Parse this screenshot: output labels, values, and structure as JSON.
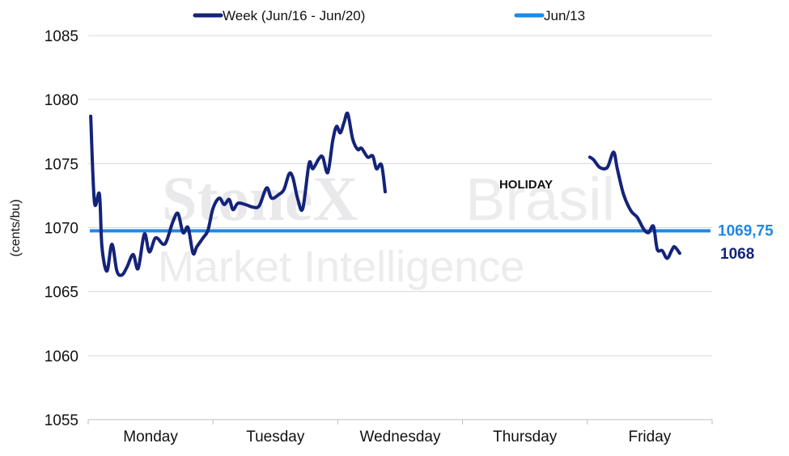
{
  "colors": {
    "week": "#14237a",
    "ref": "#1e88e5",
    "grid": "#d9d9d9"
  },
  "watermark": {
    "brand": "StoneX",
    "brand2": "Brasil",
    "sub": "Market Intelligence"
  },
  "chart_data": {
    "type": "line",
    "ylabel": "(cents/bu)",
    "ylim": [
      1055,
      1085
    ],
    "yticks": [
      1055,
      1060,
      1065,
      1070,
      1075,
      1080,
      1085
    ],
    "categories": [
      "Monday",
      "Tuesday",
      "Wednesday",
      "Thursday",
      "Friday"
    ],
    "grid": true,
    "legend_position": "top",
    "annotation": "HOLIDAY",
    "series": [
      {
        "name": "Week (Jun/16 - Jun/20)",
        "end_label": "1068",
        "segments": [
          [
            [
              0.02,
              1078.7
            ],
            [
              0.05,
              1072.0
            ],
            [
              0.09,
              1072.6
            ],
            [
              0.11,
              1068.5
            ],
            [
              0.15,
              1066.6
            ],
            [
              0.19,
              1068.7
            ],
            [
              0.23,
              1066.6
            ],
            [
              0.27,
              1066.3
            ],
            [
              0.31,
              1066.9
            ],
            [
              0.36,
              1067.9
            ],
            [
              0.4,
              1066.8
            ],
            [
              0.45,
              1069.5
            ],
            [
              0.49,
              1068.1
            ],
            [
              0.54,
              1069.2
            ],
            [
              0.6,
              1068.7
            ],
            [
              0.63,
              1069.0
            ],
            [
              0.68,
              1070.5
            ],
            [
              0.72,
              1071.1
            ],
            [
              0.76,
              1069.6
            ],
            [
              0.8,
              1070.0
            ],
            [
              0.84,
              1068.0
            ],
            [
              0.87,
              1068.5
            ],
            [
              0.92,
              1069.2
            ],
            [
              0.96,
              1069.8
            ],
            [
              1.0,
              1071.5
            ],
            [
              1.05,
              1072.3
            ],
            [
              1.09,
              1071.8
            ],
            [
              1.13,
              1072.2
            ],
            [
              1.16,
              1071.4
            ],
            [
              1.2,
              1071.9
            ],
            [
              1.26,
              1071.8
            ],
            [
              1.32,
              1071.6
            ],
            [
              1.37,
              1071.7
            ],
            [
              1.43,
              1073.1
            ],
            [
              1.47,
              1072.3
            ],
            [
              1.53,
              1072.6
            ],
            [
              1.57,
              1073.0
            ],
            [
              1.61,
              1074.2
            ],
            [
              1.64,
              1073.9
            ],
            [
              1.68,
              1072.2
            ],
            [
              1.72,
              1071.5
            ],
            [
              1.77,
              1075.0
            ],
            [
              1.8,
              1074.6
            ],
            [
              1.85,
              1075.4
            ],
            [
              1.88,
              1075.5
            ],
            [
              1.92,
              1074.3
            ],
            [
              1.96,
              1076.8
            ],
            [
              1.99,
              1077.9
            ],
            [
              2.02,
              1077.4
            ],
            [
              2.05,
              1078.2
            ],
            [
              2.08,
              1078.9
            ],
            [
              2.12,
              1076.9
            ],
            [
              2.16,
              1076.1
            ],
            [
              2.19,
              1076.2
            ],
            [
              2.24,
              1075.5
            ],
            [
              2.28,
              1075.6
            ],
            [
              2.31,
              1074.6
            ],
            [
              2.35,
              1074.9
            ],
            [
              2.38,
              1072.8
            ]
          ],
          [
            [
              4.02,
              1075.5
            ],
            [
              4.05,
              1075.3
            ],
            [
              4.1,
              1074.7
            ],
            [
              4.16,
              1074.7
            ],
            [
              4.21,
              1075.9
            ],
            [
              4.24,
              1074.6
            ],
            [
              4.29,
              1072.6
            ],
            [
              4.35,
              1071.3
            ],
            [
              4.4,
              1070.8
            ],
            [
              4.45,
              1069.9
            ],
            [
              4.49,
              1069.6
            ],
            [
              4.53,
              1070.1
            ],
            [
              4.56,
              1068.3
            ],
            [
              4.6,
              1068.2
            ],
            [
              4.64,
              1067.6
            ],
            [
              4.68,
              1068.3
            ],
            [
              4.7,
              1068.5
            ],
            [
              4.74,
              1068.0
            ]
          ]
        ]
      },
      {
        "name": "Jun/13",
        "value": 1069.75,
        "end_label": "1069,75"
      }
    ]
  }
}
